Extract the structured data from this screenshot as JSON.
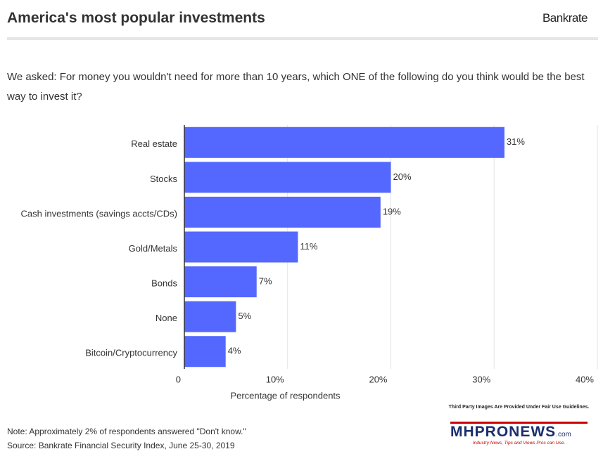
{
  "chart_data": {
    "type": "bar",
    "orientation": "horizontal",
    "title": "America's most popular investments",
    "brand": "Bankrate",
    "subtitle": "We asked: For money you wouldn't need for more than 10 years, which ONE of the following do you think would be the best way to invest it?",
    "categories": [
      "Real estate",
      "Stocks",
      "Cash investments (savings accts/CDs)",
      "Gold/Metals",
      "Bonds",
      "None",
      "Bitcoin/Cryptocurrency"
    ],
    "values": [
      31,
      20,
      19,
      11,
      7,
      5,
      4
    ],
    "value_labels": [
      "31%",
      "20%",
      "19%",
      "11%",
      "7%",
      "5%",
      "4%"
    ],
    "color": "#5468ff",
    "xlim": [
      0,
      40
    ],
    "xticks": [
      0,
      {
        "value": 10,
        "label": "10%"
      },
      {
        "value": 20,
        "label": "20%"
      },
      {
        "value": 30,
        "label": "30%"
      },
      {
        "value": 40,
        "label": "40%"
      }
    ],
    "xlabel": "Percentage of respondents",
    "grid": true,
    "note": "Note: Approximately 2% of respondents answered \"Don't know.\"",
    "source": "Source: Bankrate Financial Security Index, June 25-30, 2019"
  },
  "watermark": {
    "disclaimer": "Third Party Images Are Provided Under Fair Use Guidelines.",
    "logo": "MHPRONEWS",
    "domain": ".com",
    "tagline": "Industry News, Tips and Views Pros can Use."
  }
}
